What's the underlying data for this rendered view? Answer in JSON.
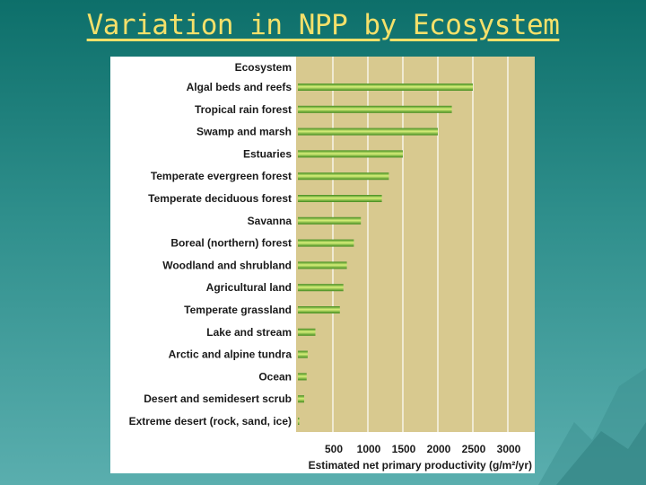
{
  "slide": {
    "title": "Variation in NPP by Ecosystem"
  },
  "colors": {
    "plot_bg": "#d8c98f",
    "bar_light": "#d9f07a",
    "bar_dark": "#3f8a1e",
    "grid": "#ffffff"
  },
  "chart_data": {
    "type": "bar",
    "orientation": "horizontal",
    "category_header": "Ecosystem",
    "categories": [
      "Algal beds and reefs",
      "Tropical rain forest",
      "Swamp and marsh",
      "Estuaries",
      "Temperate evergreen forest",
      "Temperate deciduous forest",
      "Savanna",
      "Boreal (northern) forest",
      "Woodland and shrubland",
      "Agricultural land",
      "Temperate grassland",
      "Lake and stream",
      "Arctic and alpine tundra",
      "Ocean",
      "Desert and semidesert scrub",
      "Extreme desert (rock, sand, ice)"
    ],
    "values": [
      2500,
      2200,
      2000,
      1500,
      1300,
      1200,
      900,
      800,
      700,
      650,
      600,
      250,
      140,
      125,
      90,
      3
    ],
    "xlabel": "Estimated net primary productivity (g/m²/yr)",
    "xticks": [
      500,
      1000,
      1500,
      2000,
      2500,
      3000
    ],
    "xlim": [
      0,
      3000
    ],
    "grid": true
  }
}
